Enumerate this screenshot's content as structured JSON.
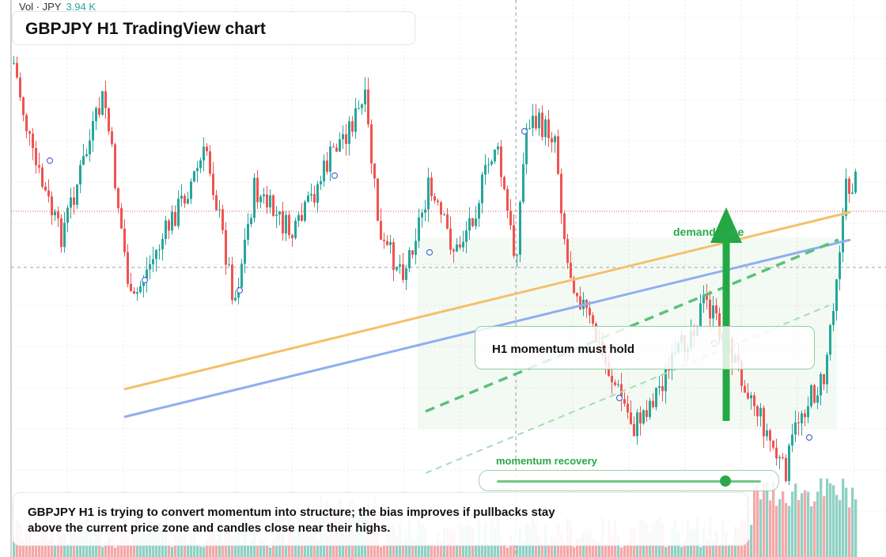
{
  "volume_legend": {
    "prefix": "Vol · JPY",
    "value": "3.94 K"
  },
  "header": {
    "title": "GBPJPY H1 TradingView chart"
  },
  "annotations": {
    "demand_zone_label": "demand zone",
    "note_label": "H1 momentum must hold",
    "momentum_label": "momentum recovery",
    "momentum_level": 0.86
  },
  "summary": {
    "text": "GBPJPY H1 is trying to convert momentum into structure; the bias improves if pullbacks stay above the current price zone and candles close near their highs."
  },
  "colors": {
    "up_candle": "#26a69a",
    "down_candle": "#ef5350",
    "up_volume": "#8fd1c4",
    "down_volume": "#f5a8a8",
    "orange_trendline": "#f4c06a",
    "blue_trendline": "#8faef0",
    "accent_green": "#2ba84a"
  },
  "chart_data": {
    "type": "candlestick",
    "symbol": "GBPJPY",
    "timeframe": "H1",
    "overlays": [
      "demand zone",
      "orange trendline",
      "blue trendline",
      "green dashed channel",
      "upward arrow"
    ]
  }
}
